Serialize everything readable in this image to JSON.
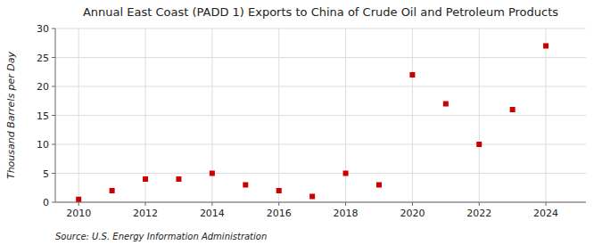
{
  "chart_data": {
    "type": "scatter",
    "title": "Annual East Coast (PADD 1) Exports to China of Crude Oil and Petroleum Products",
    "ylabel": "Thousand Barrels per Day",
    "annotations": [
      "Source: U.S. Energy Information Administration"
    ],
    "x": [
      2010,
      2011,
      2012,
      2013,
      2014,
      2015,
      2016,
      2017,
      2018,
      2019,
      2020,
      2021,
      2022,
      2023,
      2024
    ],
    "values": [
      0.5,
      2,
      4,
      4,
      5,
      3,
      2,
      1,
      5,
      3,
      22,
      17,
      10,
      16,
      27
    ],
    "color": "#cc0000",
    "marker": "square",
    "xlim": [
      2009.3,
      2025.2
    ],
    "ylim": [
      0,
      30
    ],
    "xticks": [
      2010,
      2012,
      2014,
      2016,
      2018,
      2020,
      2022,
      2024
    ],
    "yticks": [
      0,
      5,
      10,
      15,
      20,
      25,
      30
    ],
    "grid": true
  }
}
